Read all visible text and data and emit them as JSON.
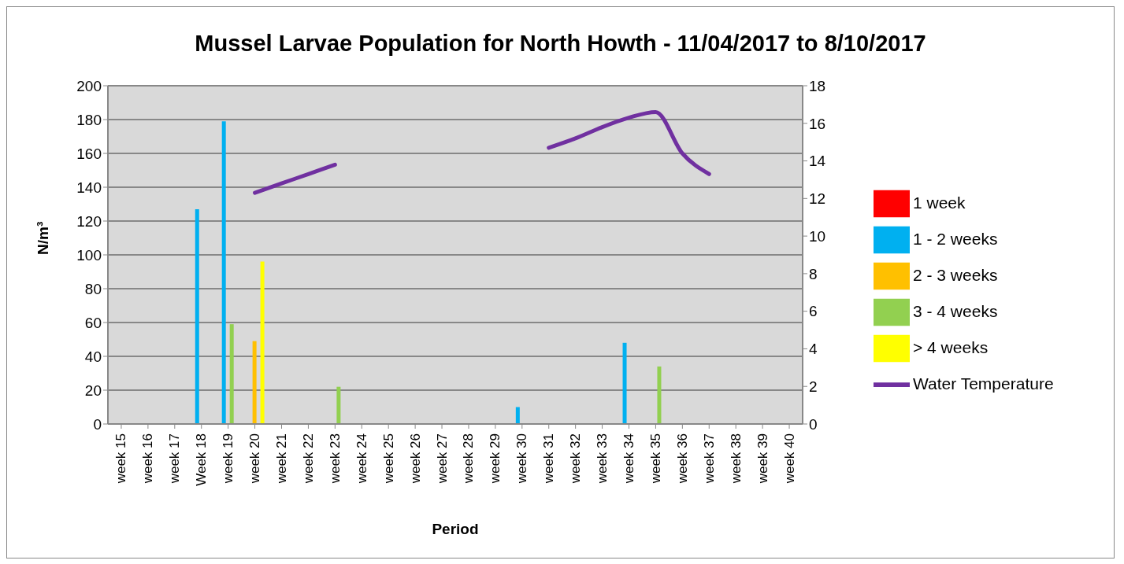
{
  "chart_data": {
    "type": "bar",
    "title": "Mussel Larvae Population for North Howth - 11/04/2017 to 8/10/2017",
    "xlabel": "Period",
    "ylabel": "N/m³",
    "categories": [
      "week 15",
      "week 16",
      "week 17",
      "Week 18",
      "week 19",
      "week 20",
      "week 21",
      "week 22",
      "week 23",
      "week 24",
      "week 25",
      "week 26",
      "week 27",
      "week 28",
      "week 29",
      "week 30",
      "week 31",
      "week 32",
      "week 33",
      "week 34",
      "week 35",
      "week 36",
      "week 37",
      "week 38",
      "week 39",
      "week 40"
    ],
    "series": [
      {
        "name": "1 week",
        "color": "#ff0000",
        "values": [
          null,
          null,
          null,
          null,
          null,
          null,
          null,
          null,
          null,
          null,
          null,
          null,
          null,
          null,
          null,
          null,
          null,
          null,
          null,
          null,
          null,
          null,
          null,
          null,
          null,
          null
        ]
      },
      {
        "name": "1 - 2 weeks",
        "color": "#00b0f0",
        "values": [
          null,
          null,
          null,
          127,
          179,
          null,
          null,
          null,
          null,
          null,
          null,
          null,
          null,
          null,
          null,
          10,
          null,
          null,
          null,
          48,
          null,
          null,
          null,
          null,
          null,
          null
        ]
      },
      {
        "name": "2 - 3 weeks",
        "color": "#ffc000",
        "values": [
          null,
          null,
          null,
          null,
          null,
          49,
          null,
          null,
          null,
          null,
          null,
          null,
          null,
          null,
          null,
          null,
          null,
          null,
          null,
          null,
          null,
          null,
          null,
          null,
          null,
          null
        ]
      },
      {
        "name": "3 - 4 weeks",
        "color": "#92d050",
        "values": [
          null,
          null,
          null,
          null,
          59,
          null,
          null,
          null,
          22,
          null,
          null,
          null,
          null,
          null,
          null,
          null,
          null,
          null,
          null,
          null,
          34,
          null,
          null,
          null,
          null,
          null
        ]
      },
      {
        "name": "> 4 weeks",
        "color": "#ffff00",
        "values": [
          null,
          null,
          null,
          null,
          null,
          96,
          null,
          null,
          null,
          null,
          null,
          null,
          null,
          null,
          null,
          null,
          null,
          null,
          null,
          null,
          null,
          null,
          null,
          null,
          null,
          null
        ]
      },
      {
        "name": "Water Temperature",
        "type": "line",
        "axis": "y2",
        "color": "#7030a0",
        "values": [
          null,
          null,
          null,
          null,
          null,
          12.3,
          12.8,
          13.3,
          13.8,
          null,
          null,
          null,
          null,
          null,
          null,
          null,
          14.7,
          15.2,
          15.8,
          16.3,
          16.6,
          14.4,
          13.3,
          null,
          null,
          null
        ]
      }
    ],
    "ylim": [
      0,
      200
    ],
    "yticks": [
      0,
      20,
      40,
      60,
      80,
      100,
      120,
      140,
      160,
      180,
      200
    ],
    "y2lim": [
      0,
      18
    ],
    "y2ticks": [
      0,
      2,
      4,
      6,
      8,
      10,
      12,
      14,
      16,
      18
    ],
    "grid": "y",
    "legend": "right"
  }
}
